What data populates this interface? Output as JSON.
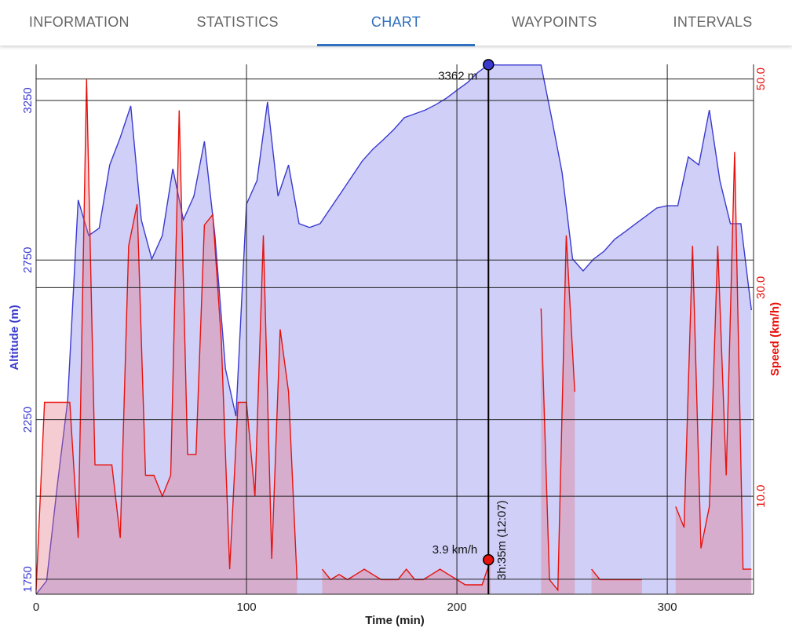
{
  "tabs": [
    {
      "label": "INFORMATION",
      "active": false
    },
    {
      "label": "STATISTICS",
      "active": false
    },
    {
      "label": "CHART",
      "active": true
    },
    {
      "label": "WAYPOINTS",
      "active": false
    },
    {
      "label": "INTERVALS",
      "active": false
    }
  ],
  "chart_data": {
    "type": "area",
    "xlabel": "Time (min)",
    "ylabel": "Altitude (m)",
    "y2label": "Speed (km/h)",
    "xlim": [
      0,
      341
    ],
    "xticks": [
      0,
      100,
      200,
      300
    ],
    "ylim": [
      1703,
      3363
    ],
    "yticks": [
      1750,
      2250,
      2750,
      3250
    ],
    "y2lim": [
      0.6,
      51.4
    ],
    "y2ticks": [
      {
        "value": 10,
        "label": "10.0"
      },
      {
        "value": 30,
        "label": "30.0"
      },
      {
        "value": 50,
        "label": "50.0"
      }
    ],
    "grid": true,
    "series": [
      {
        "color": "#3a3ad0",
        "fill": "#cfcff7",
        "x": [
          0,
          5,
          10,
          15,
          20,
          25,
          30,
          35,
          40,
          45,
          50,
          55,
          60,
          65,
          70,
          75,
          80,
          85,
          90,
          95,
          100,
          105,
          110,
          115,
          120,
          125,
          130,
          135,
          140,
          145,
          150,
          155,
          160,
          165,
          170,
          175,
          180,
          185,
          190,
          195,
          200,
          205,
          210,
          215,
          220,
          225,
          230,
          235,
          240,
          245,
          250,
          255,
          260,
          265,
          270,
          275,
          280,
          285,
          290,
          295,
          300,
          305,
          310,
          315,
          320,
          325,
          330,
          335,
          340
        ],
        "values": [
          1703,
          1745,
          2040,
          2310,
          2938,
          2827,
          2850,
          3048,
          3134,
          3233,
          2876,
          2753,
          2827,
          3036,
          2876,
          2950,
          3122,
          2827,
          2409,
          2261,
          2925,
          2999,
          3245,
          2950,
          3048,
          2864,
          2852,
          2864,
          2913,
          2962,
          3011,
          3060,
          3097,
          3127,
          3159,
          3196,
          3208,
          3220,
          3237,
          3257,
          3282,
          3306,
          3338,
          3362,
          3361,
          3361,
          3361,
          3361,
          3361,
          3196,
          3024,
          2753,
          2716,
          2753,
          2778,
          2815,
          2839,
          2864,
          2888,
          2913,
          2920,
          2920,
          3073,
          3048,
          3220,
          2999,
          2864,
          2864,
          2593
        ]
      },
      {
        "color": "#e8120c",
        "fill": "rgba(230,110,130,0.35)",
        "axis": "y2",
        "x": [
          0,
          4,
          8,
          12,
          16,
          20,
          24,
          28,
          32,
          36,
          40,
          44,
          48,
          52,
          56,
          60,
          64,
          68,
          72,
          76,
          80,
          84,
          88,
          92,
          96,
          100,
          104,
          108,
          112,
          116,
          120,
          124,
          128,
          132,
          136,
          140,
          144,
          148,
          152,
          156,
          160,
          164,
          168,
          172,
          176,
          180,
          184,
          188,
          192,
          196,
          200,
          204,
          208,
          212,
          216,
          220,
          224,
          228,
          232,
          236,
          240,
          244,
          248,
          252,
          256,
          260,
          264,
          268,
          272,
          276,
          280,
          284,
          288,
          292,
          296,
          300,
          304,
          308,
          312,
          316,
          320,
          324,
          328,
          332,
          336,
          340
        ],
        "values": [
          1,
          19,
          19,
          19,
          19,
          6,
          50,
          13,
          13,
          13,
          6,
          34,
          38,
          12,
          12,
          10,
          12,
          47,
          14,
          14,
          36,
          37,
          25,
          3,
          19,
          19,
          10,
          35,
          4,
          26,
          20,
          2,
          null,
          null,
          3,
          2,
          2.5,
          2,
          2.5,
          3,
          2.5,
          2,
          2,
          2,
          3,
          2,
          2,
          2.5,
          3,
          2.5,
          2,
          1.5,
          1.5,
          1.5,
          3.9,
          null,
          null,
          null,
          null,
          null,
          28,
          2,
          1,
          35,
          20,
          null,
          3,
          2,
          2,
          2,
          2,
          2,
          2,
          null,
          null,
          null,
          9,
          7,
          34,
          5,
          9,
          34,
          12,
          43,
          3,
          3
        ]
      }
    ],
    "cursor": {
      "x": 215,
      "altitude": 3362,
      "speed": 3.9,
      "altitude_label": "3362 m",
      "speed_label": "3.9 km/h",
      "time_label": "3h:35m (12:07)"
    }
  }
}
